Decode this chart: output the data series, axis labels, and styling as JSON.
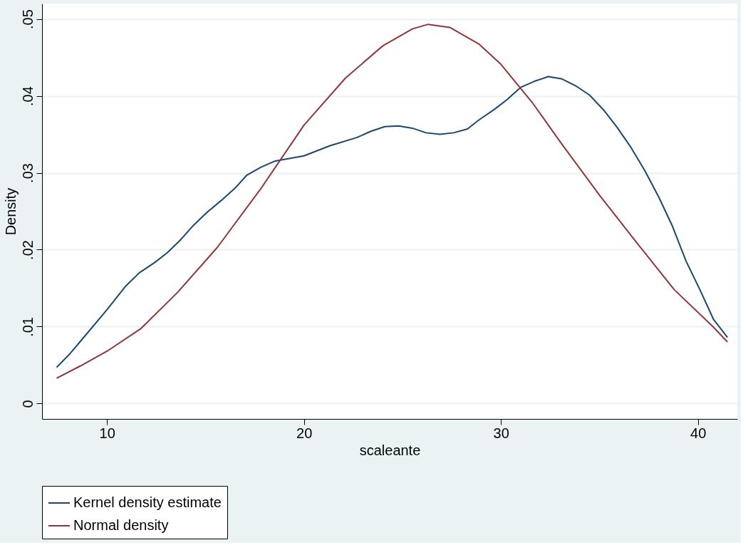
{
  "chart_data": {
    "type": "line",
    "xlabel": "scaleante",
    "ylabel": "Density",
    "xlim": [
      6.7,
      42.0
    ],
    "ylim": [
      -0.002,
      0.052
    ],
    "xticks": [
      10,
      20,
      30,
      40
    ],
    "yticks": [
      {
        "value": 0,
        "label": "0"
      },
      {
        "value": 0.01,
        "label": ".01"
      },
      {
        "value": 0.02,
        "label": ".02"
      },
      {
        "value": 0.03,
        "label": ".03"
      },
      {
        "value": 0.04,
        "label": ".04"
      },
      {
        "value": 0.05,
        "label": ".05"
      }
    ],
    "grid": "y",
    "legend": "bottom",
    "marker": "none",
    "line_style": "solid",
    "series": [
      {
        "name": "Kernel density estimate",
        "color": "#1a476f",
        "x": [
          7.44,
          8.09,
          8.85,
          10,
          10.96,
          11.64,
          12.4,
          13.06,
          13.7,
          14.4,
          15.1,
          15.8,
          16.5,
          17.1,
          17.8,
          18.5,
          20,
          21.3,
          22.7,
          23.4,
          24.1,
          24.8,
          25.5,
          26.2,
          26.9,
          27.6,
          28.3,
          28.9,
          29.7,
          30.3,
          31.0,
          31.7,
          32.4,
          33.1,
          33.8,
          34.5,
          35.2,
          35.9,
          36.6,
          37.3,
          38.0,
          38.7,
          39.4,
          40.1,
          40.8,
          41.5
        ],
        "values": [
          0.0047,
          0.0064,
          0.0087,
          0.0122,
          0.0153,
          0.017,
          0.0183,
          0.0196,
          0.0212,
          0.0232,
          0.0249,
          0.0264,
          0.028,
          0.0297,
          0.0307,
          0.0315,
          0.0322,
          0.0335,
          0.0346,
          0.0354,
          0.036,
          0.0361,
          0.0358,
          0.0352,
          0.035,
          0.0352,
          0.0357,
          0.0369,
          0.0383,
          0.0395,
          0.0411,
          0.0419,
          0.0425,
          0.0422,
          0.0413,
          0.0401,
          0.0382,
          0.0359,
          0.0333,
          0.0303,
          0.0269,
          0.0231,
          0.0185,
          0.0148,
          0.0109,
          0.0086
        ]
      },
      {
        "name": "Normal density",
        "color": "#90353b",
        "x": [
          7.44,
          8.66,
          10,
          11.7,
          13.6,
          15.6,
          17.8,
          20,
          22.1,
          24.0,
          25.5,
          26.3,
          27.4,
          28.9,
          30,
          31.6,
          33.1,
          35.0,
          36.9,
          38.8,
          40.8,
          41.5
        ],
        "values": [
          0.0033,
          0.0049,
          0.0068,
          0.0097,
          0.0145,
          0.0203,
          0.0279,
          0.0362,
          0.0423,
          0.0465,
          0.0487,
          0.0493,
          0.0489,
          0.0467,
          0.0441,
          0.0391,
          0.0337,
          0.0271,
          0.0209,
          0.0148,
          0.0099,
          0.008
        ]
      }
    ]
  }
}
